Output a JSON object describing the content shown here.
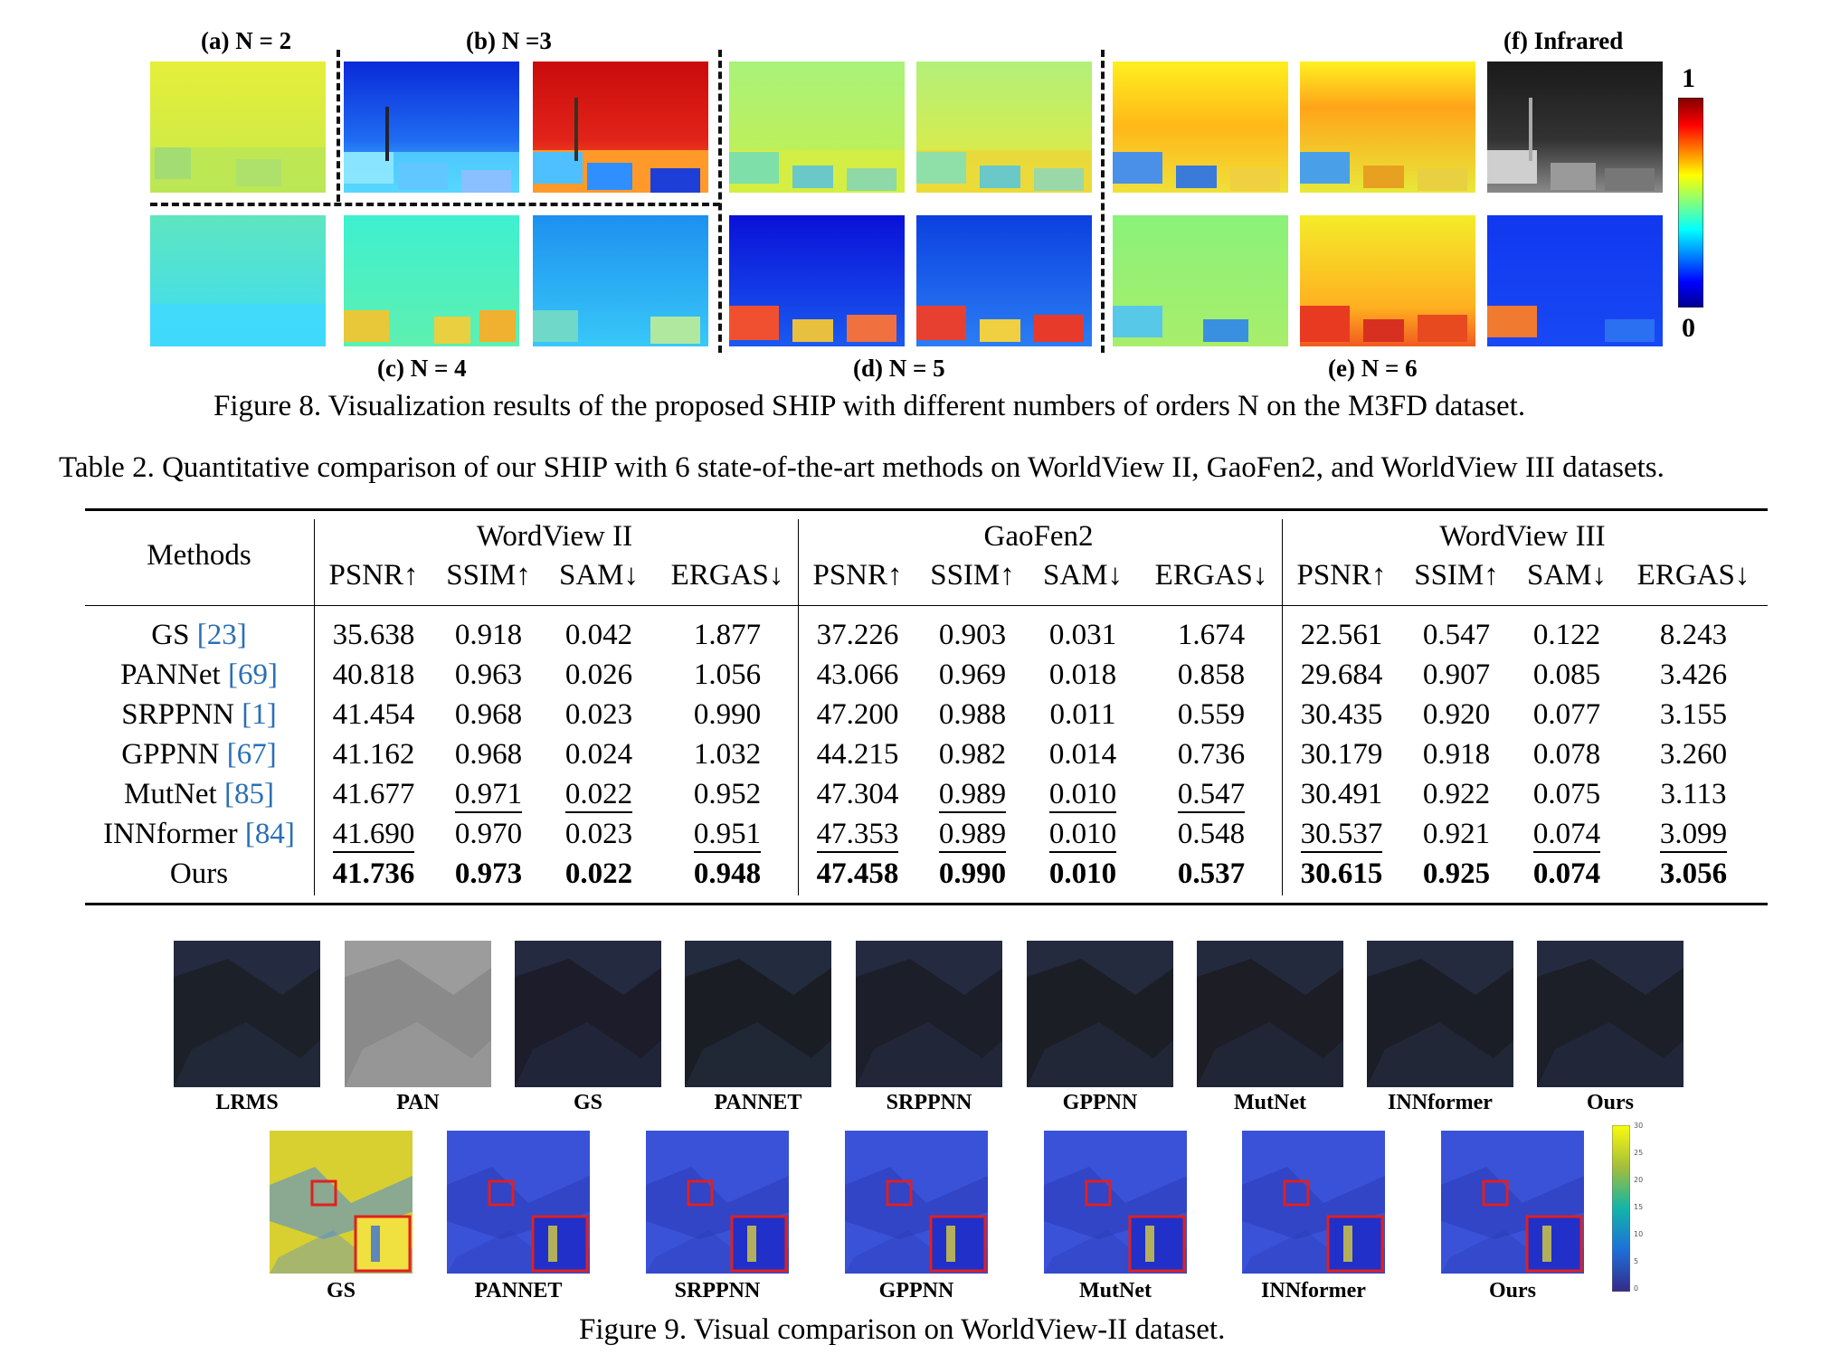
{
  "figure8": {
    "labels": {
      "a": "(a) N = 2",
      "b": "(b) N =3",
      "c": "(c) N = 4",
      "d": "(d) N = 5",
      "e": "(e) N = 6",
      "f": "(f) Infrared"
    },
    "colorbar": {
      "max": "1",
      "min": "0"
    },
    "caption": "Figure 8. Visualization results of the proposed SHIP with different numbers of orders N on the M3FD dataset."
  },
  "table2": {
    "caption": "Table 2. Quantitative comparison of our SHIP with 6 state-of-the-art methods on WorldView II, GaoFen2, and WorldView III datasets.",
    "methods_header": "Methods",
    "groups": [
      "WordView II",
      "GaoFen2",
      "WordView III"
    ],
    "metrics": [
      "PSNR↑",
      "SSIM↑",
      "SAM↓",
      "ERGAS↓"
    ],
    "rows": [
      {
        "name": "GS",
        "ref": "[23]",
        "values": [
          "35.638",
          "0.918",
          "0.042",
          "1.877",
          "37.226",
          "0.903",
          "0.031",
          "1.674",
          "22.561",
          "0.547",
          "0.122",
          "8.243"
        ]
      },
      {
        "name": "PANNet",
        "ref": "[69]",
        "values": [
          "40.818",
          "0.963",
          "0.026",
          "1.056",
          "43.066",
          "0.969",
          "0.018",
          "0.858",
          "29.684",
          "0.907",
          "0.085",
          "3.426"
        ]
      },
      {
        "name": "SRPPNN",
        "ref": "[1]",
        "values": [
          "41.454",
          "0.968",
          "0.023",
          "0.990",
          "47.200",
          "0.988",
          "0.011",
          "0.559",
          "30.435",
          "0.920",
          "0.077",
          "3.155"
        ]
      },
      {
        "name": "GPPNN",
        "ref": "[67]",
        "values": [
          "41.162",
          "0.968",
          "0.024",
          "1.032",
          "44.215",
          "0.982",
          "0.014",
          "0.736",
          "30.179",
          "0.918",
          "0.078",
          "3.260"
        ]
      },
      {
        "name": "MutNet",
        "ref": "[85]",
        "values": [
          "41.677",
          "0.971",
          "0.022",
          "0.952",
          "47.304",
          "0.989",
          "0.010",
          "0.547",
          "30.491",
          "0.922",
          "0.075",
          "3.113"
        ]
      },
      {
        "name": "INNformer",
        "ref": "[84]",
        "values": [
          "41.690",
          "0.970",
          "0.023",
          "0.951",
          "47.353",
          "0.989",
          "0.010",
          "0.548",
          "30.537",
          "0.921",
          "0.074",
          "3.099"
        ]
      },
      {
        "name": "Ours",
        "ref": "",
        "values": [
          "41.736",
          "0.973",
          "0.022",
          "0.948",
          "47.458",
          "0.990",
          "0.010",
          "0.537",
          "30.615",
          "0.925",
          "0.074",
          "3.056"
        ]
      }
    ]
  },
  "figure9": {
    "top_labels": [
      "LRMS",
      "PAN",
      "GS",
      "PANNET",
      "SRPPNN",
      "GPPNN",
      "MutNet",
      "INNformer",
      "Ours"
    ],
    "bottom_labels": [
      "GS",
      "PANNET",
      "SRPPNN",
      "GPPNN",
      "MutNet",
      "INNformer",
      "Ours"
    ],
    "colorbar_ticks": [
      "30",
      "25",
      "20",
      "15",
      "10",
      "5",
      "0"
    ],
    "caption": "Figure 9. Visual comparison on WorldView-II dataset."
  }
}
